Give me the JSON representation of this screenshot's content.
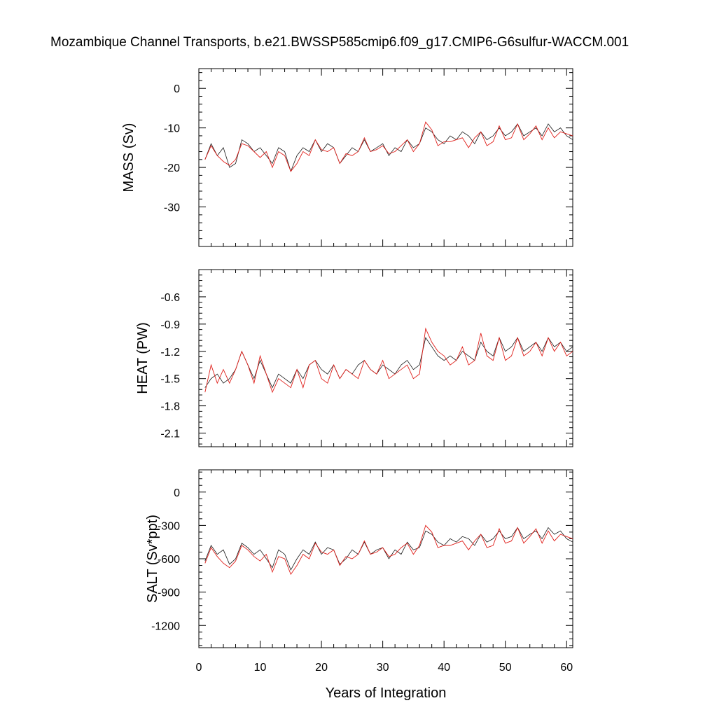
{
  "chart_data": {
    "title": "Mozambique Channel Transports, b.e21.BWSSP585cmip6.f09_g17.CMIP6-G6sulfur-WACCM.001",
    "xlabel": "Years of Integration",
    "xlim": [
      0,
      61
    ],
    "xticks": [
      0,
      10,
      20,
      30,
      40,
      50,
      60
    ],
    "panels": [
      {
        "type": "line",
        "ylabel": "MASS (Sv)",
        "ylim": [
          -40,
          5
        ],
        "yticks": [
          0,
          -10,
          -20,
          -30
        ],
        "series": [
          {
            "color": "#1a1a1a",
            "x": [
              1,
              2,
              3,
              4,
              5,
              6,
              7,
              8,
              9,
              10,
              11,
              12,
              13,
              14,
              15,
              16,
              17,
              18,
              19,
              20,
              21,
              22,
              23,
              24,
              25,
              26,
              27,
              28,
              29,
              30,
              31,
              32,
              33,
              34,
              35,
              36,
              37,
              38,
              39,
              40,
              41,
              42,
              43,
              44,
              45,
              46,
              47,
              48,
              49,
              50,
              51,
              52,
              53,
              54,
              55,
              56,
              57,
              58,
              59,
              60,
              61
            ],
            "values": [
              -18,
              -14,
              -17,
              -15,
              -20,
              -19,
              -13,
              -14,
              -16,
              -15,
              -17,
              -19,
              -15,
              -16,
              -21,
              -17,
              -15,
              -16,
              -13,
              -16,
              -14,
              -15,
              -19,
              -17,
              -15,
              -16,
              -13,
              -16,
              -15,
              -14,
              -17,
              -15,
              -16,
              -13,
              -15,
              -14,
              -10,
              -11,
              -13,
              -14,
              -12,
              -13,
              -11,
              -12,
              -14,
              -11,
              -13,
              -12,
              -10,
              -12,
              -11,
              -9,
              -12,
              -11,
              -10,
              -12,
              -9,
              -11,
              -10,
              -12,
              -13
            ]
          },
          {
            "color": "#e0201b",
            "x": [
              1,
              2,
              3,
              4,
              5,
              6,
              7,
              8,
              9,
              10,
              11,
              12,
              13,
              14,
              15,
              16,
              17,
              18,
              19,
              20,
              21,
              22,
              23,
              24,
              25,
              26,
              27,
              28,
              29,
              30,
              31,
              32,
              33,
              34,
              35,
              36,
              37,
              38,
              39,
              40,
              41,
              42,
              43,
              44,
              45,
              46,
              47,
              48,
              49,
              50,
              51,
              52,
              53,
              54,
              55,
              56,
              57,
              58,
              59,
              60,
              61
            ],
            "values": [
              -18,
              -14.5,
              -17,
              -18.5,
              -19.5,
              -18,
              -14,
              -14.5,
              -16,
              -17.5,
              -16,
              -20,
              -16,
              -17,
              -21,
              -19,
              -16,
              -17,
              -13,
              -15.5,
              -16,
              -15,
              -19,
              -16.5,
              -17,
              -16,
              -12.5,
              -16,
              -15.5,
              -14.5,
              -16.5,
              -16,
              -14.5,
              -13,
              -16,
              -14,
              -8.5,
              -10.5,
              -14.5,
              -13.5,
              -13.5,
              -13,
              -12.5,
              -15,
              -12.5,
              -11,
              -14.5,
              -13.5,
              -9.5,
              -13,
              -12.5,
              -9,
              -13,
              -11.5,
              -9.5,
              -13,
              -10,
              -12.5,
              -11,
              -11.5,
              -12
            ]
          }
        ]
      },
      {
        "type": "line",
        "ylabel": "HEAT (PW)",
        "ylim": [
          -2.25,
          -0.3
        ],
        "yticks": [
          -0.6,
          -0.9,
          -1.2,
          -1.5,
          -1.8,
          -2.1
        ],
        "series": [
          {
            "color": "#1a1a1a",
            "x": [
              1,
              2,
              3,
              4,
              5,
              6,
              7,
              8,
              9,
              10,
              11,
              12,
              13,
              14,
              15,
              16,
              17,
              18,
              19,
              20,
              21,
              22,
              23,
              24,
              25,
              26,
              27,
              28,
              29,
              30,
              31,
              32,
              33,
              34,
              35,
              36,
              37,
              38,
              39,
              40,
              41,
              42,
              43,
              44,
              45,
              46,
              47,
              48,
              49,
              50,
              51,
              52,
              53,
              54,
              55,
              56,
              57,
              58,
              59,
              60,
              61
            ],
            "values": [
              -1.6,
              -1.5,
              -1.45,
              -1.55,
              -1.5,
              -1.4,
              -1.2,
              -1.35,
              -1.5,
              -1.3,
              -1.45,
              -1.6,
              -1.45,
              -1.5,
              -1.55,
              -1.4,
              -1.5,
              -1.35,
              -1.3,
              -1.4,
              -1.45,
              -1.35,
              -1.5,
              -1.4,
              -1.45,
              -1.35,
              -1.3,
              -1.4,
              -1.45,
              -1.35,
              -1.4,
              -1.45,
              -1.35,
              -1.3,
              -1.4,
              -1.35,
              -1.05,
              -1.15,
              -1.25,
              -1.3,
              -1.25,
              -1.3,
              -1.2,
              -1.25,
              -1.3,
              -1.1,
              -1.2,
              -1.25,
              -1.05,
              -1.2,
              -1.15,
              -1.05,
              -1.2,
              -1.15,
              -1.1,
              -1.2,
              -1.05,
              -1.15,
              -1.1,
              -1.2,
              -1.15
            ]
          },
          {
            "color": "#e0201b",
            "x": [
              1,
              2,
              3,
              4,
              5,
              6,
              7,
              8,
              9,
              10,
              11,
              12,
              13,
              14,
              15,
              16,
              17,
              18,
              19,
              20,
              21,
              22,
              23,
              24,
              25,
              26,
              27,
              28,
              29,
              30,
              31,
              32,
              33,
              34,
              35,
              36,
              37,
              38,
              39,
              40,
              41,
              42,
              43,
              44,
              45,
              46,
              47,
              48,
              49,
              50,
              51,
              52,
              53,
              54,
              55,
              56,
              57,
              58,
              59,
              60,
              61
            ],
            "values": [
              -1.65,
              -1.35,
              -1.55,
              -1.4,
              -1.55,
              -1.4,
              -1.2,
              -1.35,
              -1.55,
              -1.25,
              -1.45,
              -1.65,
              -1.5,
              -1.55,
              -1.6,
              -1.4,
              -1.6,
              -1.35,
              -1.3,
              -1.5,
              -1.55,
              -1.35,
              -1.5,
              -1.4,
              -1.45,
              -1.5,
              -1.3,
              -1.4,
              -1.45,
              -1.3,
              -1.5,
              -1.45,
              -1.4,
              -1.35,
              -1.5,
              -1.45,
              -0.95,
              -1.1,
              -1.2,
              -1.25,
              -1.35,
              -1.3,
              -1.15,
              -1.35,
              -1.3,
              -1.0,
              -1.25,
              -1.3,
              -1.05,
              -1.3,
              -1.25,
              -1.05,
              -1.25,
              -1.2,
              -1.1,
              -1.25,
              -1.05,
              -1.2,
              -1.1,
              -1.25,
              -1.2
            ]
          }
        ]
      },
      {
        "type": "line",
        "ylabel": "SALT (Sv*ppt)",
        "ylim": [
          -1400,
          200
        ],
        "yticks": [
          0,
          -300,
          -600,
          -900,
          -1200
        ],
        "series": [
          {
            "color": "#1a1a1a",
            "x": [
              1,
              2,
              3,
              4,
              5,
              6,
              7,
              8,
              9,
              10,
              11,
              12,
              13,
              14,
              15,
              16,
              17,
              18,
              19,
              20,
              21,
              22,
              23,
              24,
              25,
              26,
              27,
              28,
              29,
              30,
              31,
              32,
              33,
              34,
              35,
              36,
              37,
              38,
              39,
              40,
              41,
              42,
              43,
              44,
              45,
              46,
              47,
              48,
              49,
              50,
              51,
              52,
              53,
              54,
              55,
              56,
              57,
              58,
              59,
              60,
              61
            ],
            "values": [
              -620,
              -480,
              -560,
              -520,
              -650,
              -600,
              -460,
              -500,
              -560,
              -520,
              -600,
              -680,
              -520,
              -560,
              -700,
              -600,
              -520,
              -560,
              -450,
              -560,
              -500,
              -520,
              -650,
              -600,
              -520,
              -560,
              -450,
              -560,
              -520,
              -500,
              -600,
              -520,
              -560,
              -450,
              -520,
              -500,
              -350,
              -380,
              -450,
              -480,
              -420,
              -450,
              -400,
              -420,
              -480,
              -380,
              -450,
              -420,
              -350,
              -420,
              -400,
              -320,
              -420,
              -380,
              -350,
              -420,
              -320,
              -380,
              -350,
              -420,
              -450
            ]
          },
          {
            "color": "#e0201b",
            "x": [
              1,
              2,
              3,
              4,
              5,
              6,
              7,
              8,
              9,
              10,
              11,
              12,
              13,
              14,
              15,
              16,
              17,
              18,
              19,
              20,
              21,
              22,
              23,
              24,
              25,
              26,
              27,
              28,
              29,
              30,
              31,
              32,
              33,
              34,
              35,
              36,
              37,
              38,
              39,
              40,
              41,
              42,
              43,
              44,
              45,
              46,
              47,
              48,
              49,
              50,
              51,
              52,
              53,
              54,
              55,
              56,
              57,
              58,
              59,
              60,
              61
            ],
            "values": [
              -640,
              -500,
              -580,
              -640,
              -680,
              -620,
              -480,
              -520,
              -580,
              -620,
              -560,
              -720,
              -580,
              -600,
              -740,
              -660,
              -560,
              -600,
              -460,
              -540,
              -560,
              -520,
              -660,
              -580,
              -600,
              -560,
              -440,
              -560,
              -540,
              -500,
              -580,
              -560,
              -500,
              -460,
              -560,
              -480,
              -300,
              -360,
              -500,
              -480,
              -480,
              -460,
              -440,
              -520,
              -440,
              -380,
              -500,
              -480,
              -330,
              -460,
              -440,
              -320,
              -460,
              -400,
              -330,
              -460,
              -350,
              -440,
              -380,
              -400,
              -420
            ]
          }
        ]
      }
    ]
  }
}
